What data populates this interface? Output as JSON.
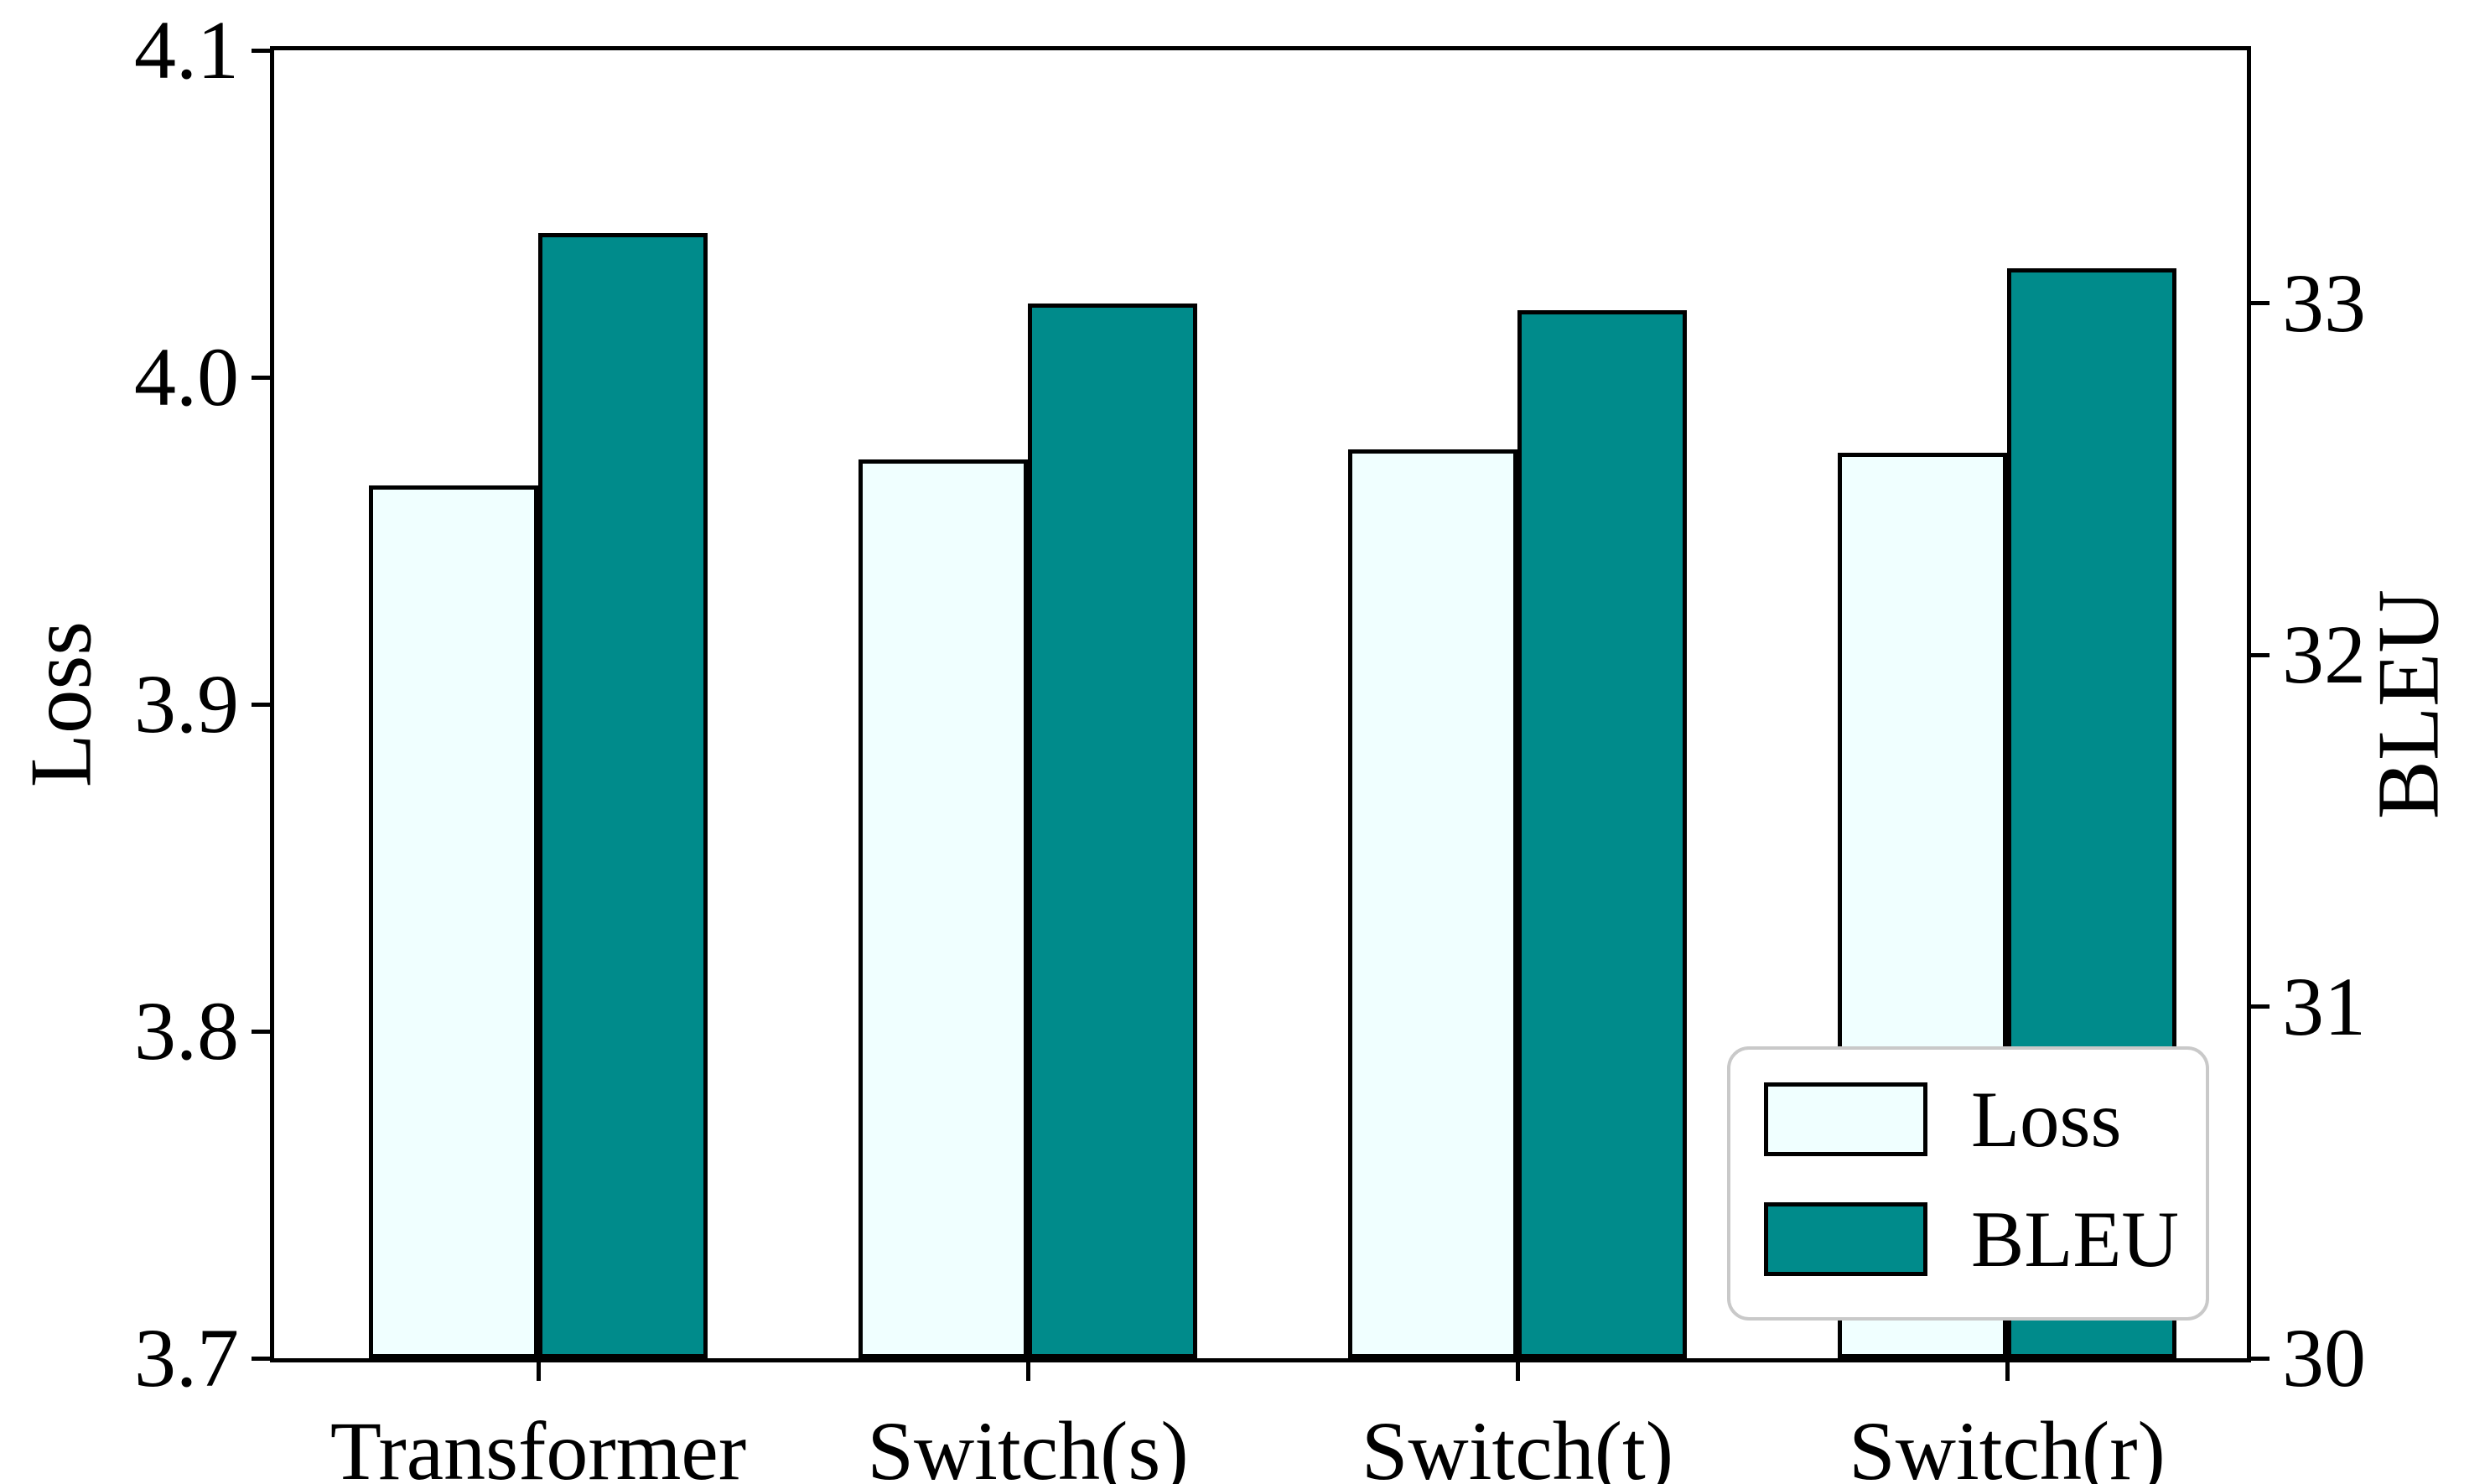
{
  "chart_data": {
    "type": "bar",
    "title": "",
    "categories": [
      "Transformer",
      "Switch(s)",
      "Switch(t)",
      "Switch(r)"
    ],
    "series": [
      {
        "name": "Loss",
        "axis": "left",
        "color": "#F0FFFF",
        "edge_color": "#000000",
        "values": [
          3.967,
          3.975,
          3.978,
          3.977
        ]
      },
      {
        "name": "BLEU",
        "axis": "right",
        "color": "#008B8B",
        "edge_color": "#000000",
        "values": [
          33.2,
          33.0,
          32.98,
          33.1
        ]
      }
    ],
    "left_axis": {
      "label": "Loss",
      "min": 3.7,
      "max": 4.1,
      "tick_values": [
        4.1,
        4.0,
        3.9,
        3.8,
        3.7
      ],
      "tick_labels": [
        "4.1",
        "4.0",
        "3.9",
        "3.8",
        "3.7"
      ]
    },
    "right_axis": {
      "label": "BLEU",
      "min": 30,
      "max": 33.72,
      "tick_values": [
        33,
        32,
        31,
        30
      ],
      "tick_labels": [
        "33",
        "32",
        "31",
        "30"
      ]
    },
    "legend": {
      "position": "lower right",
      "entries": [
        {
          "label": "Loss",
          "color": "#F0FFFF"
        },
        {
          "label": "BLEU",
          "color": "#008B8B"
        }
      ]
    },
    "grid": false
  },
  "colors": {
    "background": "#FFFFFF",
    "axis": "#000000",
    "legend_border": "#C9C9C9"
  }
}
